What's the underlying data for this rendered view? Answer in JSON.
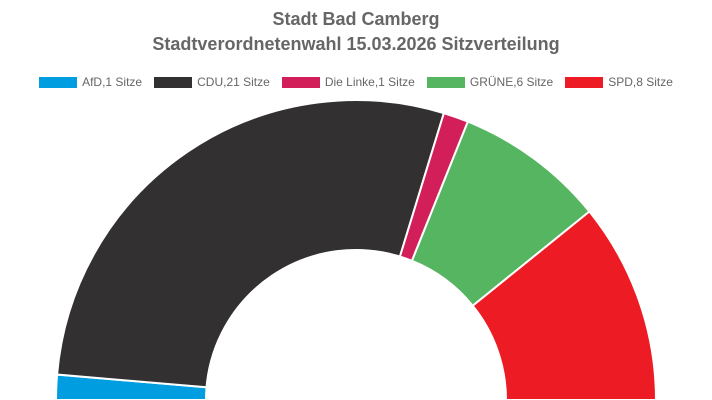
{
  "chart_data": {
    "type": "parliament-semicircle",
    "title": "Stadt Bad Camberg",
    "subtitle": "Stadtverordnetenwahl 15.03.2026 Sitzverteilung",
    "total_seats": 37,
    "series": [
      {
        "name": "AfD",
        "seats": 1,
        "legend": "AfD,1 Sitze",
        "color": "#009ee0"
      },
      {
        "name": "CDU",
        "seats": 21,
        "legend": "CDU,21 Sitze",
        "color": "#323031"
      },
      {
        "name": "Die Linke",
        "seats": 1,
        "legend": "Die Linke,1 Sitze",
        "color": "#d21f5a"
      },
      {
        "name": "GRÜNE",
        "seats": 6,
        "legend": "GRÜNE,6 Sitze",
        "color": "#56b560"
      },
      {
        "name": "SPD",
        "seats": 8,
        "legend": "SPD,8 Sitze",
        "color": "#ed1c24"
      }
    ],
    "legend_position": "top-center"
  }
}
